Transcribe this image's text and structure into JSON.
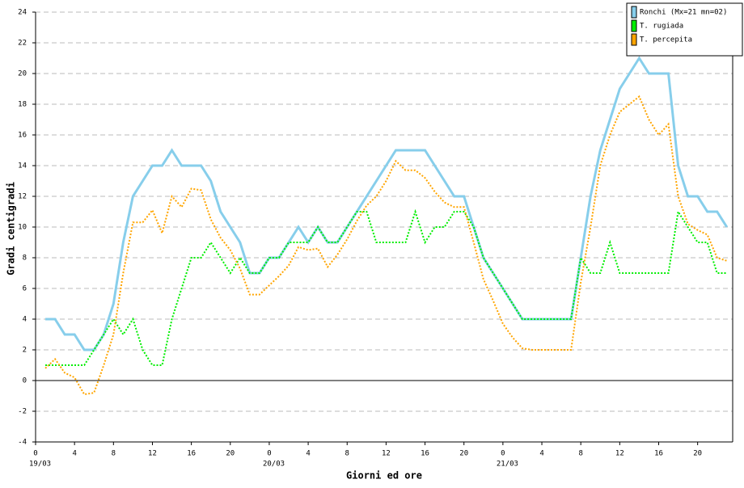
{
  "chart_data": {
    "type": "line",
    "x_label": "Giorni ed ore",
    "y_label": "Gradi centigradi",
    "x": [
      1,
      2,
      3,
      4,
      5,
      6,
      7,
      8,
      9,
      10,
      11,
      12,
      13,
      14,
      15,
      16,
      17,
      18,
      19,
      20,
      21,
      22,
      23,
      24,
      25,
      26,
      27,
      28,
      29,
      30,
      31,
      32,
      33,
      34,
      35,
      36,
      37,
      38,
      39,
      40,
      41,
      42,
      43,
      44,
      45,
      46,
      47,
      48,
      49,
      50,
      51,
      52,
      53,
      54,
      55,
      56,
      57,
      58,
      59,
      60,
      61,
      62,
      63,
      64,
      65,
      66,
      67,
      68,
      69,
      70,
      71
    ],
    "series": [
      {
        "name": "Ronchi (Mx=21 mn=02)",
        "color": "#87ceeb",
        "line_style": "solid",
        "values": [
          4,
          4,
          3,
          3,
          2,
          2,
          3,
          5,
          9,
          12,
          13,
          14,
          14,
          15,
          14,
          14,
          14,
          13,
          11,
          10,
          9,
          7,
          7,
          8,
          8,
          9,
          10,
          9,
          10,
          9,
          9,
          10,
          11,
          12,
          13,
          14,
          15,
          15,
          15,
          15,
          14,
          13,
          12,
          12,
          10,
          8,
          7,
          6,
          5,
          4,
          4,
          4,
          4,
          4,
          4,
          8,
          12,
          15,
          17,
          19,
          20,
          21,
          20,
          20,
          20,
          14,
          12,
          12,
          11,
          11,
          10
        ]
      },
      {
        "name": "T. rugiada",
        "color": "#00ee00",
        "line_style": "dotted",
        "values": [
          1,
          1,
          1,
          1,
          1,
          2,
          3,
          4,
          3,
          4,
          2,
          1,
          1,
          4,
          6,
          8,
          8,
          9,
          8,
          7,
          8,
          7,
          7,
          8,
          8,
          9,
          9,
          9,
          10,
          9,
          9,
          10,
          11,
          11,
          9,
          9,
          9,
          9,
          11,
          9,
          10,
          10,
          11,
          11,
          10,
          8,
          7,
          6,
          5,
          4,
          4,
          4,
          4,
          4,
          4,
          8,
          7,
          7,
          9,
          7,
          7,
          7,
          7,
          7,
          7,
          11,
          10,
          9,
          9,
          7,
          7
        ]
      },
      {
        "name": "T. percepita",
        "color": "#ffa500",
        "line_style": "dotted",
        "values": [
          0.8,
          1.4,
          0.5,
          0.2,
          -0.9,
          -0.8,
          1,
          3,
          7,
          10.3,
          10.3,
          11.1,
          9.6,
          12,
          11.3,
          12.5,
          12.4,
          10.5,
          9.3,
          8.5,
          7.3,
          5.6,
          5.6,
          6.2,
          6.8,
          7.5,
          8.7,
          8.5,
          8.6,
          7.4,
          8.2,
          9.2,
          10.4,
          11.4,
          12,
          13,
          14.3,
          13.7,
          13.7,
          13.2,
          12.3,
          11.6,
          11.3,
          11.3,
          9,
          6.6,
          5.2,
          3.7,
          2.8,
          2.1,
          2,
          2,
          2,
          2,
          2,
          6.4,
          10,
          14,
          16,
          17.5,
          18,
          18.5,
          17,
          16,
          16.7,
          12,
          10.2,
          9.8,
          9.5,
          8,
          7.8
        ]
      }
    ],
    "xlim": [
      0,
      71.6
    ],
    "xticks": [
      0,
      4,
      8,
      12,
      16,
      20,
      {
        "value": 24,
        "label": "0"
      },
      {
        "value": 28,
        "label": "4"
      },
      {
        "value": 32,
        "label": "8"
      },
      {
        "value": 36,
        "label": "12"
      },
      {
        "value": 40,
        "label": "16"
      },
      {
        "value": 44,
        "label": "20"
      },
      {
        "value": 48,
        "label": "0"
      },
      {
        "value": 52,
        "label": "4"
      },
      {
        "value": 56,
        "label": "8"
      },
      {
        "value": 60,
        "label": "12"
      },
      {
        "value": 64,
        "label": "16"
      },
      {
        "value": 68,
        "label": "20"
      }
    ],
    "day_labels": [
      {
        "value": 0,
        "label": "19/03"
      },
      {
        "value": 24,
        "label": "20/03"
      },
      {
        "value": 48,
        "label": "21/03"
      }
    ],
    "ylim": [
      -4,
      24
    ],
    "yticks": [
      -4,
      -2,
      0,
      2,
      4,
      6,
      8,
      10,
      12,
      14,
      16,
      18,
      20,
      22,
      24
    ],
    "grid": true,
    "legend": "top-right"
  }
}
